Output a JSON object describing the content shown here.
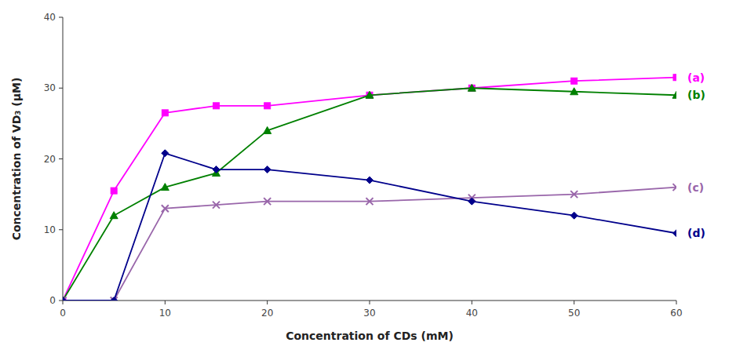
{
  "chart_data": {
    "type": "line",
    "xlabel": "Concentration of CDs (mM)",
    "ylabel": "Concentration of VD₃ (μM)",
    "x": [
      0,
      5,
      10,
      15,
      20,
      30,
      40,
      50,
      60
    ],
    "series": [
      {
        "name": "(a)",
        "color": "#FF00FF",
        "marker": "square",
        "values": [
          0,
          15.5,
          26.5,
          27.5,
          27.5,
          29.0,
          30.0,
          31.0,
          31.5
        ]
      },
      {
        "name": "(b)",
        "color": "#008000",
        "marker": "triangle",
        "values": [
          0,
          12.0,
          16.0,
          18.0,
          24.0,
          29.0,
          30.0,
          29.5,
          29.0
        ]
      },
      {
        "name": "(c)",
        "color": "#9966AA",
        "marker": "x",
        "values": [
          0,
          0,
          13.0,
          13.5,
          14.0,
          14.0,
          14.5,
          15.0,
          16.0
        ]
      },
      {
        "name": "(d)",
        "color": "#00008B",
        "marker": "diamond",
        "values": [
          0,
          0,
          20.8,
          18.5,
          18.5,
          17.0,
          14.0,
          12.0,
          9.5
        ]
      }
    ],
    "xlim": [
      0,
      60
    ],
    "ylim": [
      0,
      40
    ],
    "xticks": [
      0,
      10,
      20,
      30,
      40,
      50,
      60
    ],
    "yticks": [
      0,
      10,
      20,
      30,
      40
    ],
    "grid": false
  }
}
